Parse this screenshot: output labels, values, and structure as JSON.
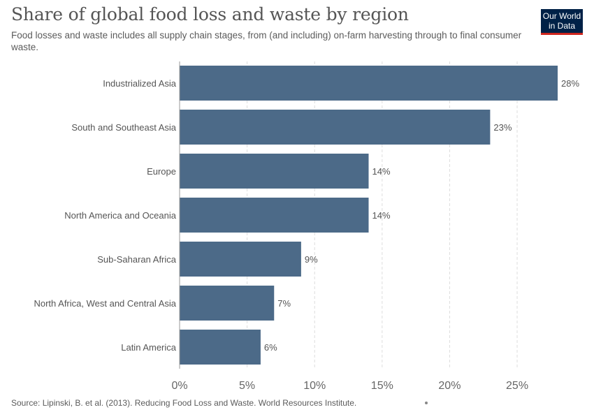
{
  "header": {
    "title": "Share of global food loss and waste by region",
    "subtitle": "Food losses and waste includes all supply chain stages, from (and including) on-farm harvesting through to final consumer waste.",
    "logo_line1": "Our World",
    "logo_line2": "in Data"
  },
  "footer": {
    "source": "Source: Lipinski, B. et al. (2013). Reducing Food Loss and Waste. World Resources Institute."
  },
  "colors": {
    "bar": "#4c6a88",
    "grid": "#dddddd",
    "logo_bg": "#002147",
    "logo_accent": "#ce261e"
  },
  "chart_data": {
    "type": "bar",
    "orientation": "horizontal",
    "categories": [
      "Industrialized Asia",
      "South and Southeast Asia",
      "Europe",
      "North America and Oceania",
      "Sub-Saharan Africa",
      "North Africa, West and Central Asia",
      "Latin America"
    ],
    "values": [
      28,
      23,
      14,
      14,
      9,
      7,
      6
    ],
    "value_labels": [
      "28%",
      "23%",
      "14%",
      "14%",
      "9%",
      "7%",
      "6%"
    ],
    "x_ticks": [
      0,
      5,
      10,
      15,
      20,
      25
    ],
    "x_tick_labels": [
      "0%",
      "5%",
      "10%",
      "15%",
      "20%",
      "25%"
    ],
    "xlim": [
      0,
      28
    ],
    "grid": "vertical dashed",
    "legend": "none"
  }
}
